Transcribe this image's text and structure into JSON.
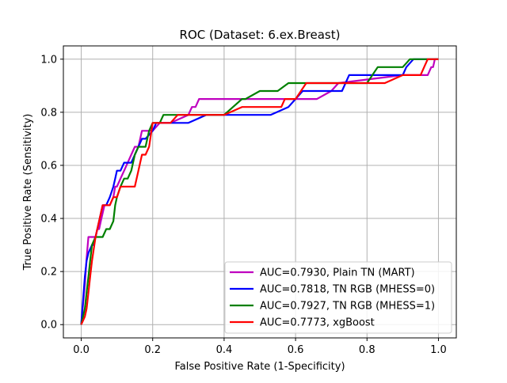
{
  "chart_data": {
    "type": "line",
    "title": "ROC (Dataset: 6.ex.Breast)",
    "xlabel": "False Positive Rate (1-Specificity)",
    "ylabel": "True Positive Rate (Sensitivity)",
    "xlim": [
      -0.05,
      1.05
    ],
    "ylim": [
      -0.05,
      1.05
    ],
    "xticks": [
      "0.0",
      "0.2",
      "0.4",
      "0.6",
      "0.8",
      "1.0"
    ],
    "yticks": [
      "0.0",
      "0.2",
      "0.4",
      "0.6",
      "0.8",
      "1.0"
    ],
    "grid": true,
    "legend_position": "lower-right",
    "series": [
      {
        "name": "AUC=0.7930, Plain TN (MART)",
        "color": "#bf00bf",
        "x": [
          0.0,
          0.01,
          0.015,
          0.02,
          0.02,
          0.03,
          0.04,
          0.045,
          0.05,
          0.055,
          0.06,
          0.065,
          0.07,
          0.08,
          0.09,
          0.095,
          0.1,
          0.11,
          0.12,
          0.13,
          0.14,
          0.15,
          0.16,
          0.17,
          0.19,
          0.2,
          0.22,
          0.25,
          0.3,
          0.31,
          0.32,
          0.33,
          0.4,
          0.5,
          0.6,
          0.65,
          0.66,
          0.7,
          0.72,
          0.9,
          0.95,
          0.97,
          0.98,
          0.985,
          0.99,
          1.0
        ],
        "y": [
          0.0,
          0.15,
          0.25,
          0.33,
          0.33,
          0.33,
          0.33,
          0.36,
          0.36,
          0.39,
          0.42,
          0.45,
          0.45,
          0.45,
          0.48,
          0.52,
          0.52,
          0.55,
          0.58,
          0.61,
          0.64,
          0.67,
          0.67,
          0.73,
          0.73,
          0.73,
          0.76,
          0.76,
          0.79,
          0.82,
          0.82,
          0.85,
          0.85,
          0.85,
          0.85,
          0.85,
          0.85,
          0.88,
          0.91,
          0.94,
          0.94,
          0.94,
          0.97,
          0.97,
          1.0,
          1.0
        ]
      },
      {
        "name": "AUC=0.7818, TN RGB (MHESS=0)",
        "color": "#0000ff",
        "x": [
          0.0,
          0.005,
          0.01,
          0.015,
          0.02,
          0.03,
          0.035,
          0.04,
          0.05,
          0.06,
          0.07,
          0.08,
          0.09,
          0.095,
          0.1,
          0.11,
          0.12,
          0.13,
          0.14,
          0.15,
          0.16,
          0.17,
          0.18,
          0.2,
          0.21,
          0.22,
          0.3,
          0.35,
          0.4,
          0.53,
          0.58,
          0.6,
          0.6,
          0.62,
          0.73,
          0.75,
          0.9,
          0.91,
          0.93,
          0.95,
          1.0
        ],
        "y": [
          0.0,
          0.09,
          0.18,
          0.24,
          0.27,
          0.3,
          0.3,
          0.33,
          0.39,
          0.45,
          0.45,
          0.48,
          0.52,
          0.55,
          0.58,
          0.58,
          0.61,
          0.61,
          0.61,
          0.64,
          0.67,
          0.7,
          0.7,
          0.73,
          0.76,
          0.76,
          0.76,
          0.79,
          0.79,
          0.79,
          0.82,
          0.85,
          0.85,
          0.88,
          0.88,
          0.94,
          0.94,
          0.97,
          1.0,
          1.0,
          1.0
        ]
      },
      {
        "name": "AUC=0.7927, TN RGB (MHESS=1)",
        "color": "#008000",
        "x": [
          0.0,
          0.005,
          0.01,
          0.015,
          0.02,
          0.025,
          0.03,
          0.04,
          0.045,
          0.05,
          0.06,
          0.07,
          0.08,
          0.09,
          0.095,
          0.1,
          0.11,
          0.12,
          0.13,
          0.14,
          0.15,
          0.16,
          0.18,
          0.19,
          0.2,
          0.22,
          0.23,
          0.25,
          0.3,
          0.4,
          0.45,
          0.46,
          0.5,
          0.55,
          0.58,
          0.6,
          0.65,
          0.75,
          0.8,
          0.83,
          0.9,
          0.92,
          0.93,
          0.95,
          1.0
        ],
        "y": [
          0.0,
          0.03,
          0.06,
          0.12,
          0.18,
          0.24,
          0.3,
          0.33,
          0.33,
          0.33,
          0.33,
          0.36,
          0.36,
          0.39,
          0.45,
          0.48,
          0.52,
          0.55,
          0.55,
          0.58,
          0.64,
          0.67,
          0.67,
          0.73,
          0.76,
          0.76,
          0.79,
          0.79,
          0.79,
          0.79,
          0.85,
          0.85,
          0.88,
          0.88,
          0.91,
          0.91,
          0.91,
          0.91,
          0.91,
          0.97,
          0.97,
          1.0,
          1.0,
          1.0,
          1.0
        ]
      },
      {
        "name": "AUC=0.7773, xgBoost",
        "color": "#ff0000",
        "x": [
          0.0,
          0.01,
          0.015,
          0.02,
          0.025,
          0.03,
          0.04,
          0.05,
          0.06,
          0.07,
          0.08,
          0.09,
          0.1,
          0.11,
          0.15,
          0.16,
          0.17,
          0.18,
          0.19,
          0.2,
          0.25,
          0.27,
          0.3,
          0.4,
          0.45,
          0.5,
          0.56,
          0.57,
          0.6,
          0.63,
          0.7,
          0.75,
          0.85,
          0.9,
          0.95,
          0.96,
          0.97,
          1.0
        ],
        "y": [
          0.0,
          0.03,
          0.06,
          0.12,
          0.18,
          0.24,
          0.33,
          0.39,
          0.45,
          0.45,
          0.45,
          0.48,
          0.48,
          0.52,
          0.52,
          0.58,
          0.64,
          0.64,
          0.67,
          0.76,
          0.76,
          0.79,
          0.79,
          0.79,
          0.82,
          0.82,
          0.82,
          0.85,
          0.85,
          0.91,
          0.91,
          0.91,
          0.91,
          0.94,
          0.94,
          0.97,
          1.0,
          1.0
        ]
      }
    ]
  }
}
